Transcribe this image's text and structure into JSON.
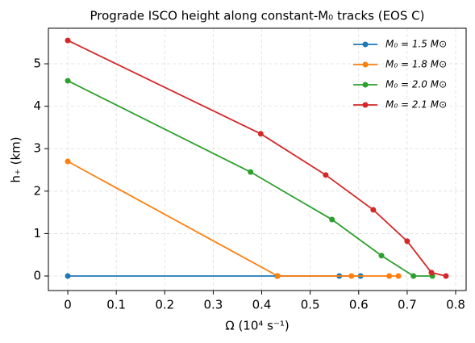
{
  "chart_data": {
    "type": "line",
    "title": "Prograde ISCO height along constant-M₀ tracks (EOS C)",
    "xlabel": "Ω (10⁴ s⁻¹)",
    "ylabel": "h₊ (km)",
    "xlim": [
      -0.04,
      0.8216
    ],
    "ylim": [
      -0.342,
      5.837
    ],
    "xticks": [
      0.0,
      0.1,
      0.2,
      0.3,
      0.4,
      0.5,
      0.6,
      0.7,
      0.8
    ],
    "yticks": [
      0,
      1,
      2,
      3,
      4,
      5
    ],
    "grid": true,
    "legend": "upper right",
    "series": [
      {
        "name": "M₀ = 1.5 M⊙",
        "color": "#1f77b4",
        "x": [
          0.0,
          0.432,
          0.56,
          0.604
        ],
        "values": [
          0,
          0,
          0,
          0
        ]
      },
      {
        "name": "M₀ = 1.8 M⊙",
        "color": "#ff7f0e",
        "x": [
          0.0,
          0.433,
          0.585,
          0.663,
          0.682
        ],
        "values": [
          2.7,
          0,
          0,
          0,
          0
        ]
      },
      {
        "name": "M₀ = 2.0 M⊙",
        "color": "#2ca02c",
        "x": [
          0.0,
          0.377,
          0.545,
          0.647,
          0.713,
          0.752
        ],
        "values": [
          4.6,
          2.45,
          1.33,
          0.48,
          0,
          0
        ]
      },
      {
        "name": "M₀ = 2.1 M⊙",
        "color": "#d62728",
        "x": [
          0.0,
          0.398,
          0.532,
          0.63,
          0.7,
          0.75,
          0.78
        ],
        "values": [
          5.55,
          3.35,
          2.38,
          1.56,
          0.82,
          0.08,
          0
        ]
      }
    ]
  }
}
